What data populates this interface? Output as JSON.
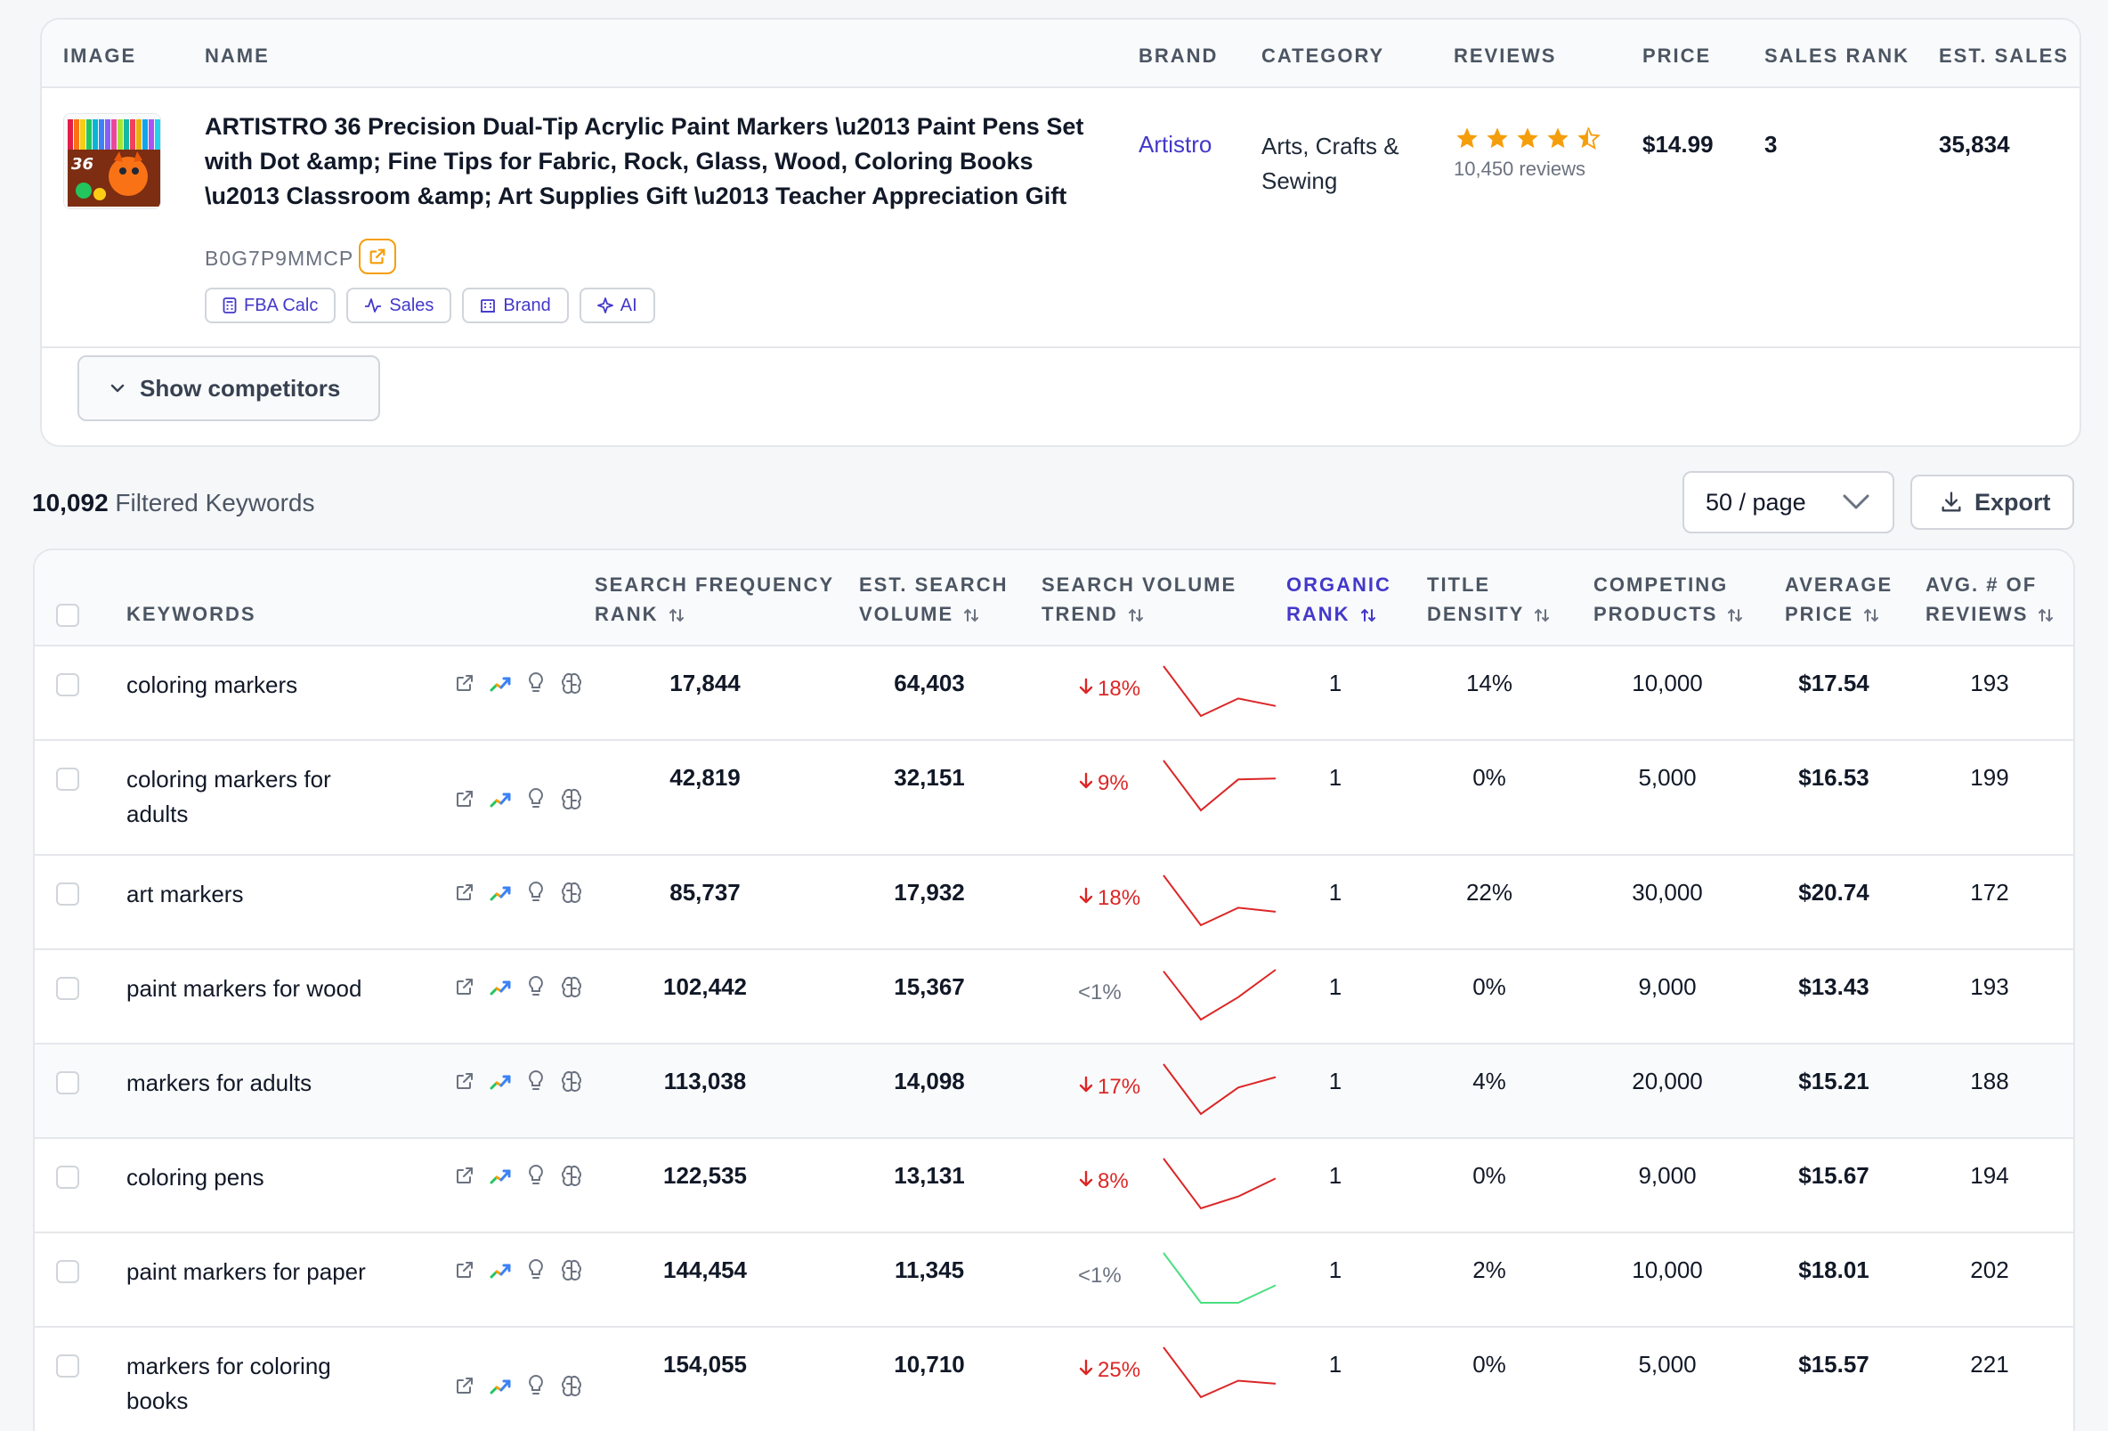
{
  "product_table": {
    "headers": [
      "IMAGE",
      "NAME",
      "BRAND",
      "CATEGORY",
      "REVIEWS",
      "PRICE",
      "SALES RANK",
      "EST. SALES"
    ],
    "product": {
      "name": "ARTISTRO 36 Precision Dual-Tip Acrylic Paint Markers \\u2013 Paint Pens Set with Dot &amp; Fine Tips for Fabric, Rock, Glass, Wood, Coloring Books \\u2013 Classroom &amp; Art Supplies Gift \\u2013 Teacher Appreciation Gift",
      "asin": "B0G7P9MMCP",
      "brand": "Artistro",
      "category": "Arts, Crafts & Sewing",
      "rating": 4.5,
      "reviews": "10,450 reviews",
      "price": "$14.99",
      "sales_rank": "3",
      "est_sales": "35,834",
      "image_text": "36"
    },
    "chips": [
      {
        "label": "FBA Calc",
        "icon": "calculator-icon"
      },
      {
        "label": "Sales",
        "icon": "activity-icon"
      },
      {
        "label": "Brand",
        "icon": "building-icon"
      },
      {
        "label": "AI",
        "icon": "sparkle-icon"
      }
    ],
    "show_competitors_label": "Show competitors"
  },
  "toolbar": {
    "count": "10,092",
    "count_label": "Filtered Keywords",
    "page_size": "50 / page",
    "export_label": "Export"
  },
  "keyword_table": {
    "columns": [
      {
        "label": "KEYWORDS",
        "line2": ""
      },
      {
        "label": "SEARCH FREQUENCY",
        "line2": "RANK"
      },
      {
        "label": "EST. SEARCH",
        "line2": "VOLUME"
      },
      {
        "label": "SEARCH VOLUME",
        "line2": "TREND"
      },
      {
        "label": "ORGANIC",
        "line2": "RANK"
      },
      {
        "label": "TITLE",
        "line2": "DENSITY"
      },
      {
        "label": "COMPETING",
        "line2": "PRODUCTS"
      },
      {
        "label": "AVERAGE",
        "line2": "PRICE"
      },
      {
        "label": "AVG. # OF",
        "line2": "REVIEWS"
      }
    ],
    "rows": [
      {
        "keyword": "coloring markers",
        "sfr": "17,844",
        "volume": "64,403",
        "trend": "18%",
        "trend_dir": "down",
        "spark": [
          1.0,
          0.0,
          0.35,
          0.2
        ],
        "spark_color": "#dc2626",
        "organic": "1",
        "density": "14%",
        "competing": "10,000",
        "price": "$17.54",
        "reviews": "193"
      },
      {
        "keyword": "coloring markers for adults",
        "sfr": "42,819",
        "volume": "32,151",
        "trend": "9%",
        "trend_dir": "down",
        "spark": [
          1.0,
          0.0,
          0.62,
          0.64
        ],
        "spark_color": "#dc2626",
        "organic": "1",
        "density": "0%",
        "competing": "5,000",
        "price": "$16.53",
        "reviews": "199"
      },
      {
        "keyword": "art markers",
        "sfr": "85,737",
        "volume": "17,932",
        "trend": "18%",
        "trend_dir": "down",
        "spark": [
          1.0,
          0.0,
          0.35,
          0.27
        ],
        "spark_color": "#dc2626",
        "organic": "1",
        "density": "22%",
        "competing": "30,000",
        "price": "$20.74",
        "reviews": "172"
      },
      {
        "keyword": "paint markers for wood",
        "sfr": "102,442",
        "volume": "15,367",
        "trend": "<1%",
        "trend_dir": "flat",
        "spark": [
          0.97,
          0.0,
          0.45,
          1.0
        ],
        "spark_color": "#dc2626",
        "organic": "1",
        "density": "0%",
        "competing": "9,000",
        "price": "$13.43",
        "reviews": "193"
      },
      {
        "keyword": "markers for adults",
        "sfr": "113,038",
        "volume": "14,098",
        "trend": "17%",
        "trend_dir": "down",
        "spark": [
          1.0,
          0.0,
          0.53,
          0.74
        ],
        "spark_color": "#dc2626",
        "organic": "1",
        "density": "4%",
        "competing": "20,000",
        "price": "$15.21",
        "reviews": "188"
      },
      {
        "keyword": "coloring pens",
        "sfr": "122,535",
        "volume": "13,131",
        "trend": "8%",
        "trend_dir": "down",
        "spark": [
          1.0,
          0.0,
          0.24,
          0.6
        ],
        "spark_color": "#dc2626",
        "organic": "1",
        "density": "0%",
        "competing": "9,000",
        "price": "$15.67",
        "reviews": "194"
      },
      {
        "keyword": "paint markers for paper",
        "sfr": "144,454",
        "volume": "11,345",
        "trend": "<1%",
        "trend_dir": "flat",
        "spark": [
          1.0,
          0.0,
          0.0,
          0.35
        ],
        "spark_color": "#4ade80",
        "organic": "1",
        "density": "2%",
        "competing": "10,000",
        "price": "$18.01",
        "reviews": "202"
      },
      {
        "keyword": "markers for coloring books",
        "sfr": "154,055",
        "volume": "10,710",
        "trend": "25%",
        "trend_dir": "down",
        "spark": [
          1.0,
          0.0,
          0.33,
          0.27
        ],
        "spark_color": "#dc2626",
        "organic": "1",
        "density": "0%",
        "competing": "5,000",
        "price": "$15.57",
        "reviews": "221"
      }
    ]
  },
  "colors": {
    "accent": "#4338ca",
    "star": "#f59e0b",
    "down": "#dc2626",
    "up": "#4ade80"
  }
}
